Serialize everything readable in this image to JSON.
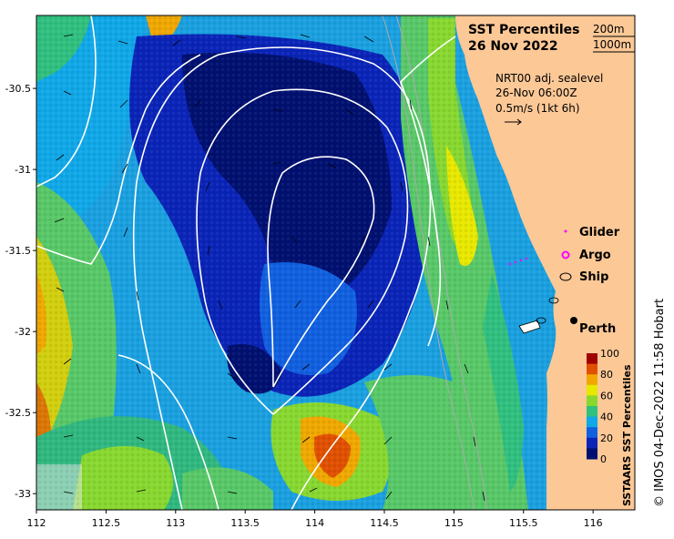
{
  "title_line1": "SST Percentiles",
  "title_line2": "26 Nov 2022",
  "contour_legend": [
    "200m",
    "1000m"
  ],
  "current_source": "NRT00 adj. sealevel",
  "current_time": "26-Nov 06:00Z",
  "vector_scale": "0.5m/s (1kt 6h)",
  "platform_legend": [
    {
      "label": "Glider",
      "symbol": "dot",
      "color": "#ff00ff"
    },
    {
      "label": "Argo",
      "symbol": "ring",
      "color": "#ff00ff"
    },
    {
      "label": "Ship",
      "symbol": "ellipse",
      "color": "#000000"
    }
  ],
  "city_label": "Perth",
  "colorbar_title": "SSTAARS SST Percentiles",
  "colorbar_ticks": [
    "100",
    "80",
    "60",
    "40",
    "20",
    "0"
  ],
  "colorbar_colors": [
    "#a00000",
    "#e05000",
    "#f0a800",
    "#e8e800",
    "#88d830",
    "#30c080",
    "#10a8e8",
    "#1060e0",
    "#0a24b8",
    "#001070"
  ],
  "credit": "© IMOS 04-Dec-2022 11:58 Hobart",
  "x_ticks": [
    "112",
    "112.5",
    "113",
    "113.5",
    "114",
    "114.5",
    "115",
    "115.5",
    "116"
  ],
  "y_ticks": [
    "-30.5",
    "-31",
    "-31.5",
    "-32",
    "-32.5",
    "-33"
  ],
  "x_range": [
    112,
    116.3
  ],
  "y_range": [
    -33.1,
    -30.05
  ]
}
